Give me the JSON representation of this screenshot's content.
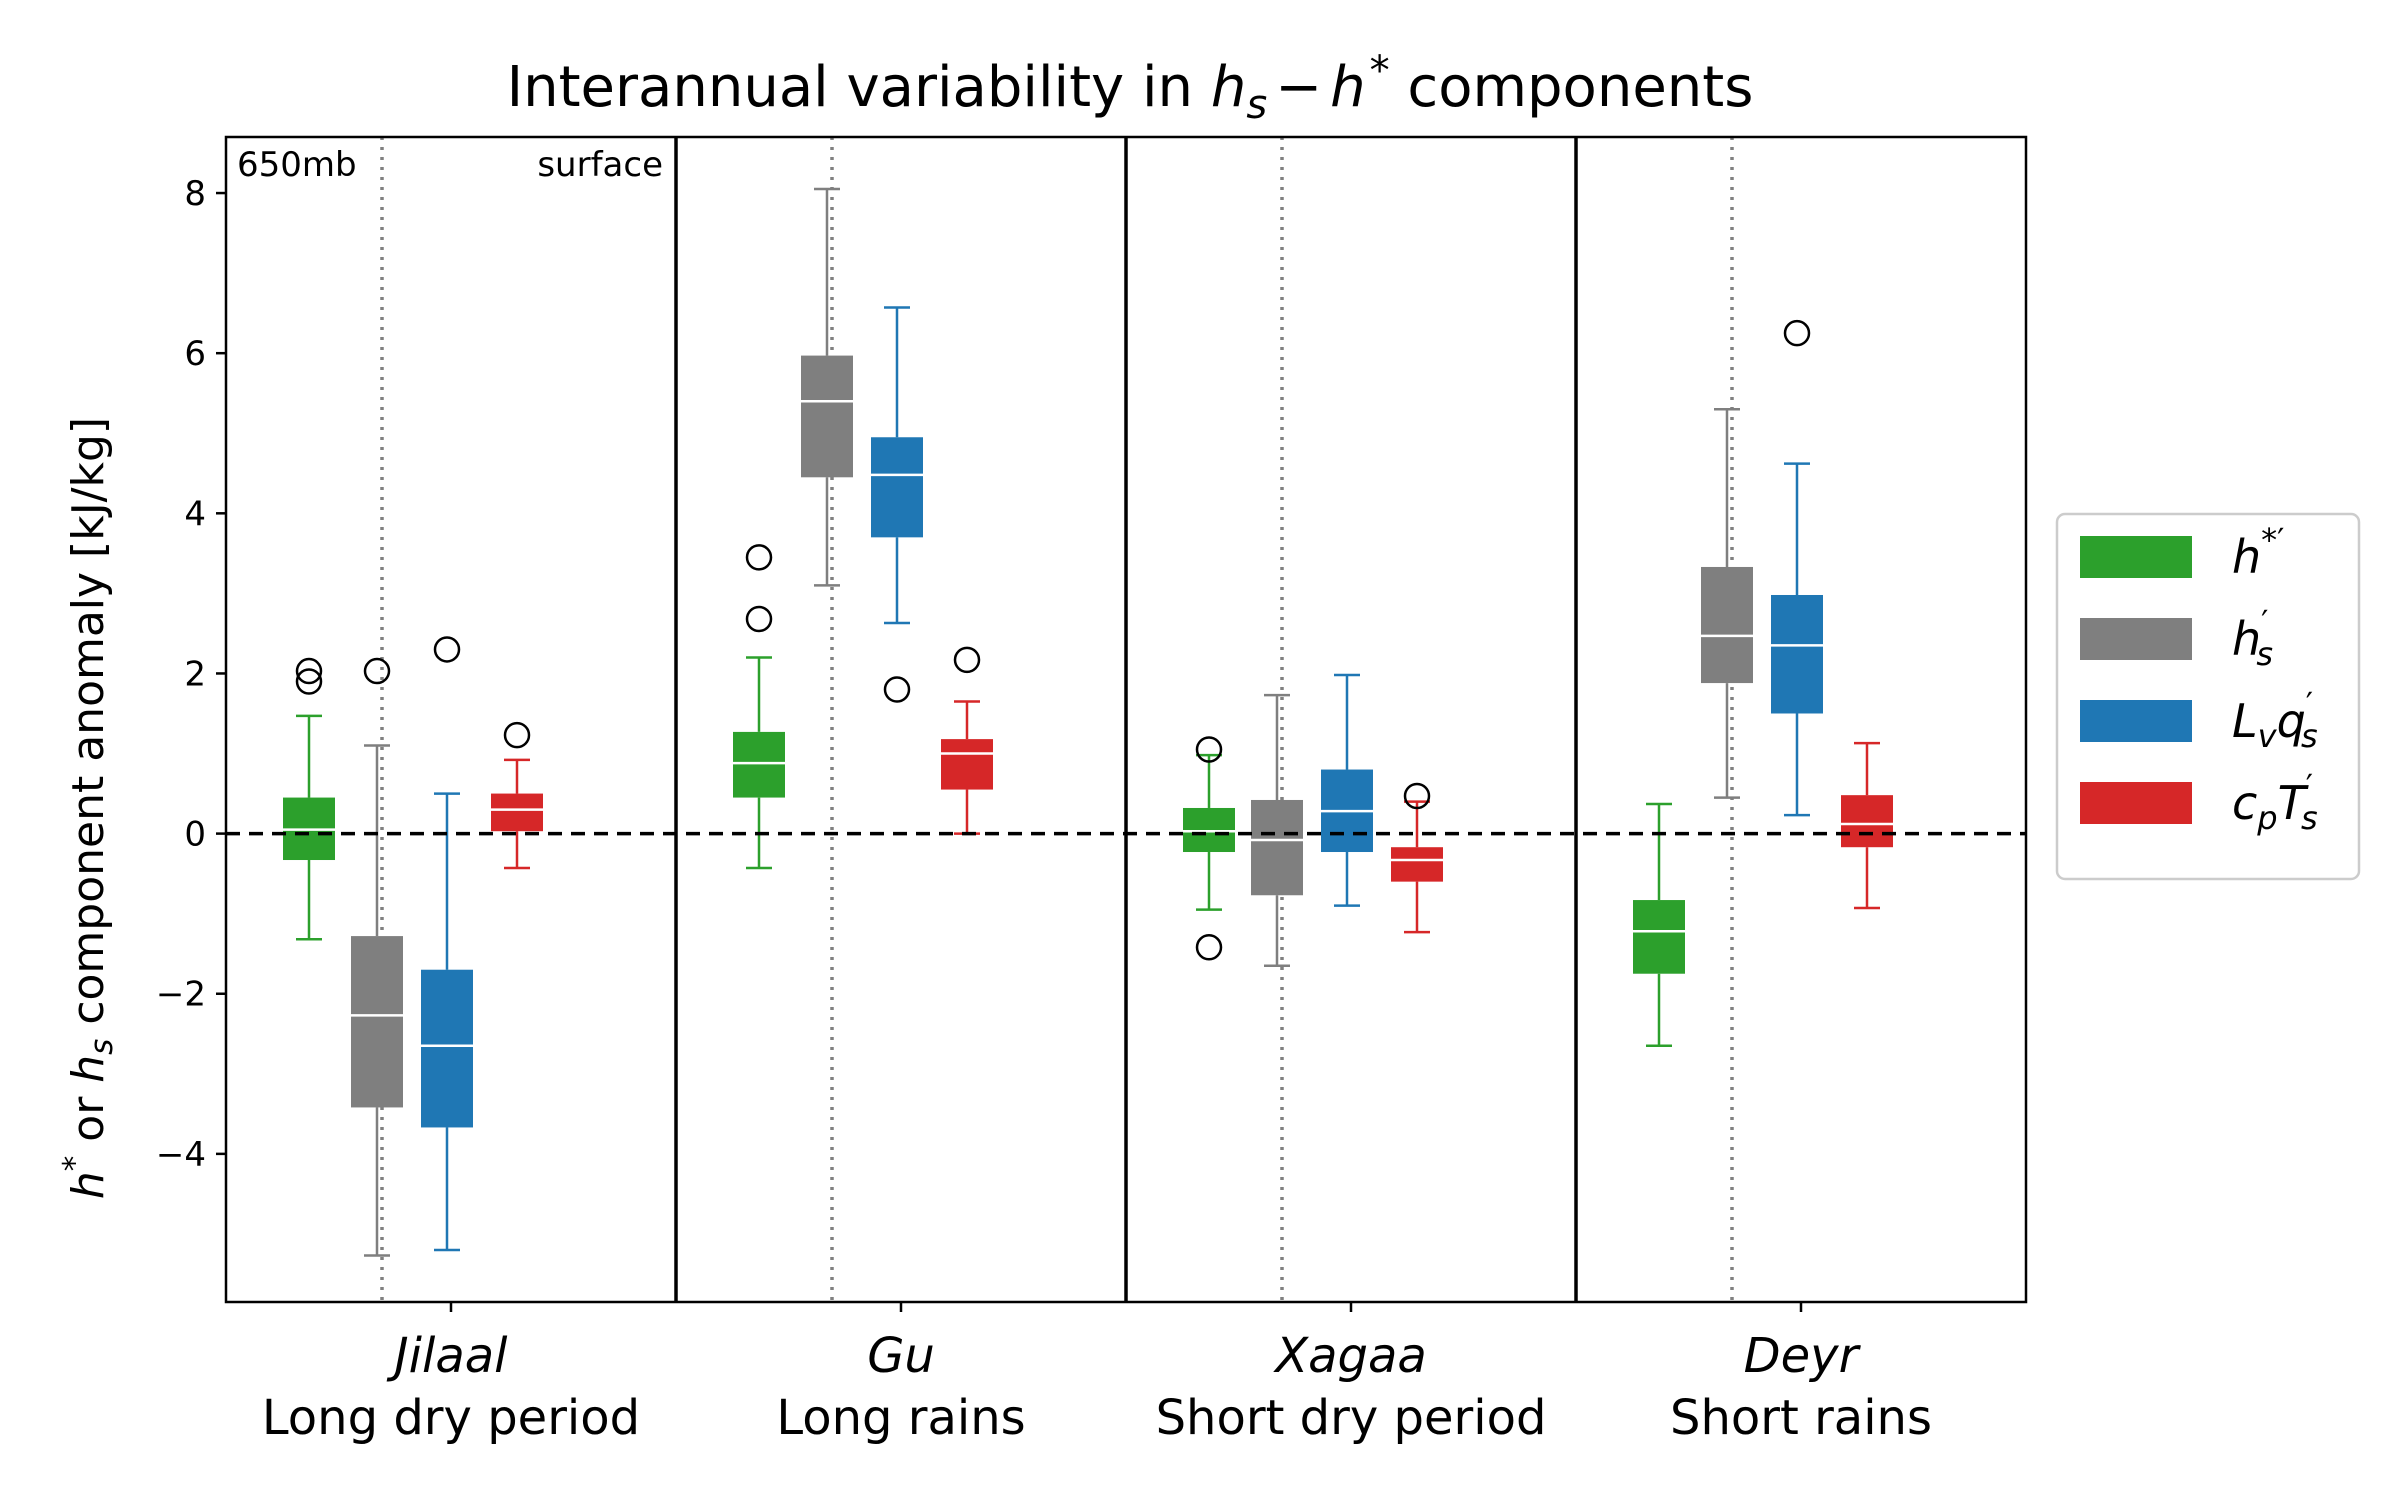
{
  "chart_data": {
    "type": "box",
    "title_plain": "Interannual variability in ",
    "title_math": {
      "h": "h",
      "sub_s": "s",
      "minus": "−",
      "h2": "h",
      "star": "*"
    },
    "title_tail": " components",
    "ylabel": {
      "h": "h",
      "star": "*",
      "or": " or ",
      "h2": "h",
      "sub_s": "s",
      "rest": " component anomaly [kJ/kg]"
    },
    "ylim": [
      -5.85,
      8.7
    ],
    "yticks": [
      8,
      6,
      4,
      2,
      0,
      -2,
      -4
    ],
    "ytick_labels": [
      "8",
      "6",
      "4",
      "2",
      "0",
      "−2",
      "−4"
    ],
    "reference_line": 0,
    "level_labels": {
      "left": "650mb",
      "right": "surface"
    },
    "periods": [
      {
        "name": "Jilaal",
        "desc": "Long dry period"
      },
      {
        "name": "Gu",
        "desc": "Long rains"
      },
      {
        "name": "Xagaa",
        "desc": "Short dry period"
      },
      {
        "name": "Deyr",
        "desc": "Short rains"
      }
    ],
    "series": [
      {
        "key": "hstar",
        "color": "#2ca02c",
        "legend": {
          "base": "h",
          "sup": "*′"
        }
      },
      {
        "key": "hs",
        "color": "#7f7f7f",
        "legend": {
          "base": "h",
          "sup": "′",
          "sub": "s"
        }
      },
      {
        "key": "lvqs",
        "color": "#1f77b4",
        "legend": {
          "pre": "L",
          "pre_sub": "v",
          "base": "q",
          "sup": "′",
          "sub": "s"
        }
      },
      {
        "key": "cpts",
        "color": "#d62728",
        "legend": {
          "pre": "c",
          "pre_sub": "p",
          "base": "T",
          "sup": "′",
          "sub": "s"
        }
      }
    ],
    "boxes": [
      {
        "period": 0,
        "series": 0,
        "whislo": -1.32,
        "q1": -0.33,
        "med": 0.05,
        "q3": 0.45,
        "whishi": 1.47,
        "fliers": [
          1.9,
          2.03
        ]
      },
      {
        "period": 0,
        "series": 1,
        "whislo": -5.27,
        "q1": -3.42,
        "med": -2.27,
        "q3": -1.28,
        "whishi": 1.1,
        "fliers": [
          2.03
        ]
      },
      {
        "period": 0,
        "series": 2,
        "whislo": -5.2,
        "q1": -3.67,
        "med": -2.65,
        "q3": -1.7,
        "whishi": 0.5,
        "fliers": [
          2.3
        ]
      },
      {
        "period": 0,
        "series": 3,
        "whislo": -0.43,
        "q1": 0.03,
        "med": 0.3,
        "q3": 0.5,
        "whishi": 0.92,
        "fliers": [
          1.23
        ]
      },
      {
        "period": 1,
        "series": 0,
        "whislo": -0.43,
        "q1": 0.45,
        "med": 0.88,
        "q3": 1.27,
        "whishi": 2.2,
        "fliers": [
          2.68,
          3.45
        ]
      },
      {
        "period": 1,
        "series": 1,
        "whislo": 3.1,
        "q1": 4.45,
        "med": 5.4,
        "q3": 5.97,
        "whishi": 8.05,
        "fliers": []
      },
      {
        "period": 1,
        "series": 2,
        "whislo": 2.63,
        "q1": 3.7,
        "med": 4.48,
        "q3": 4.95,
        "whishi": 6.57,
        "fliers": [
          1.8
        ]
      },
      {
        "period": 1,
        "series": 3,
        "whislo": 0.0,
        "q1": 0.55,
        "med": 1.0,
        "q3": 1.18,
        "whishi": 1.65,
        "fliers": [
          2.17
        ]
      },
      {
        "period": 2,
        "series": 0,
        "whislo": -0.95,
        "q1": -0.23,
        "med": 0.03,
        "q3": 0.32,
        "whishi": 0.98,
        "fliers": [
          1.05,
          -1.42
        ]
      },
      {
        "period": 2,
        "series": 1,
        "whislo": -1.65,
        "q1": -0.77,
        "med": -0.08,
        "q3": 0.42,
        "whishi": 1.73,
        "fliers": []
      },
      {
        "period": 2,
        "series": 2,
        "whislo": -0.9,
        "q1": -0.23,
        "med": 0.28,
        "q3": 0.8,
        "whishi": 1.98,
        "fliers": []
      },
      {
        "period": 2,
        "series": 3,
        "whislo": -1.23,
        "q1": -0.6,
        "med": -0.33,
        "q3": -0.17,
        "whishi": 0.4,
        "fliers": [
          0.47
        ]
      },
      {
        "period": 3,
        "series": 0,
        "whislo": -2.65,
        "q1": -1.75,
        "med": -1.22,
        "q3": -0.83,
        "whishi": 0.37,
        "fliers": []
      },
      {
        "period": 3,
        "series": 1,
        "whislo": 0.45,
        "q1": 1.88,
        "med": 2.47,
        "q3": 3.33,
        "whishi": 5.3,
        "fliers": []
      },
      {
        "period": 3,
        "series": 2,
        "whislo": 0.23,
        "q1": 1.5,
        "med": 2.35,
        "q3": 2.98,
        "whishi": 4.62,
        "fliers": [
          6.25
        ]
      },
      {
        "period": 3,
        "series": 3,
        "whislo": -0.93,
        "q1": -0.17,
        "med": 0.12,
        "q3": 0.48,
        "whishi": 1.13,
        "fliers": []
      }
    ]
  }
}
